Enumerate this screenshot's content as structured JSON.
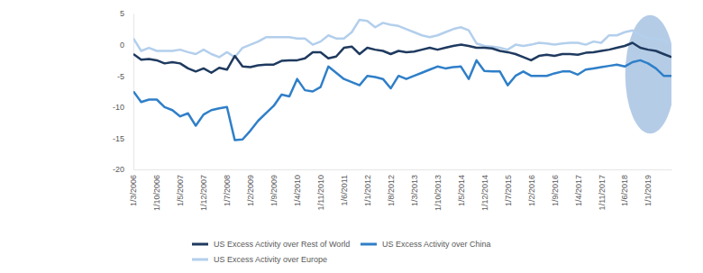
{
  "chart_data": {
    "type": "line",
    "categories": [
      "1/3/2006",
      null,
      null,
      "1/10/2006",
      null,
      null,
      "1/5/2007",
      null,
      null,
      "1/12/2007",
      null,
      null,
      "1/7/2008",
      null,
      null,
      "1/2/2009",
      null,
      null,
      "1/9/2009",
      null,
      null,
      "1/4/2010",
      null,
      null,
      "1/11/2010",
      null,
      null,
      "1/6/2011",
      null,
      null,
      "1/1/2012",
      null,
      null,
      "1/8/2012",
      null,
      null,
      "1/3/2013",
      null,
      null,
      "1/10/2013",
      null,
      null,
      "1/5/2014",
      null,
      null,
      "1/12/2014",
      null,
      null,
      "1/7/2015",
      null,
      null,
      "1/2/2016",
      null,
      null,
      "1/9/2016",
      null,
      null,
      "1/4/2017",
      null,
      null,
      "1/11/2017",
      null,
      null,
      "1/6/2018",
      null,
      null,
      "1/1/2019",
      null,
      null,
      null
    ],
    "series": [
      {
        "name": "US Excess Activity over Rest of World",
        "color": "#1f3a5f",
        "values": [
          -1.5,
          -2.4,
          -2.3,
          -2.5,
          -3,
          -2.8,
          -3,
          -3.8,
          -4.3,
          -3.8,
          -4.5,
          -3.7,
          -4,
          -1.8,
          -3.5,
          -3.6,
          -3.3,
          -3.2,
          -3.2,
          -2.6,
          -2.5,
          -2.5,
          -2.2,
          -1.2,
          -1.2,
          -2.2,
          -1.9,
          -0.5,
          -0.3,
          -1.5,
          -0.5,
          -0.8,
          -1,
          -1.5,
          -1,
          -1.2,
          -1.1,
          -0.8,
          -0.5,
          -0.8,
          -0.5,
          -0.2,
          0,
          -0.2,
          -0.5,
          -0.5,
          -0.6,
          -1,
          -1.2,
          -1.5,
          -2,
          -2.5,
          -1.8,
          -1.6,
          -1.8,
          -1.5,
          -1.5,
          -1.6,
          -1.3,
          -1.2,
          -1,
          -0.8,
          -0.5,
          -0.2,
          0.3,
          -0.5,
          -0.8,
          -1,
          -1.5,
          -2
        ]
      },
      {
        "name": "US Excess Activity over China",
        "color": "#2f7fc8",
        "values": [
          -7.5,
          -9.2,
          -8.8,
          -8.8,
          -10,
          -10.5,
          -11.5,
          -11,
          -13,
          -11.2,
          -10.5,
          -10.2,
          -10,
          -15.3,
          -15.2,
          -13.8,
          -12.2,
          -11,
          -9.8,
          -8,
          -8.3,
          -5.5,
          -7.3,
          -7.5,
          -6.8,
          -3.5,
          -4.5,
          -5.5,
          -6,
          -6.5,
          -5,
          -5.2,
          -5.5,
          -7,
          -5,
          -5.5,
          -5,
          -4.5,
          -4,
          -3.5,
          -3.8,
          -3.6,
          -3.5,
          -5.5,
          -2.5,
          -4.2,
          -4.3,
          -4.3,
          -6.5,
          -5,
          -4.3,
          -5,
          -5,
          -5,
          -4.6,
          -4.3,
          -4.3,
          -4.8,
          -4,
          -3.8,
          -3.6,
          -3.4,
          -3.2,
          -3.5,
          -2.8,
          -2.5,
          -3,
          -3.8,
          -5,
          -5
        ]
      },
      {
        "name": "US Excess Activity over Europe",
        "color": "#b3cfec",
        "values": [
          1,
          -1,
          -0.5,
          -1,
          -1,
          -1,
          -0.8,
          -1.2,
          -1.5,
          -0.8,
          -1.5,
          -2,
          -1.2,
          -2,
          -0.5,
          0,
          0.5,
          1.2,
          1.2,
          1.2,
          1.2,
          1,
          1,
          0,
          0.5,
          1.5,
          1,
          1,
          2,
          4,
          3.8,
          2.8,
          3.5,
          3.2,
          3,
          2.5,
          2,
          1.5,
          1.2,
          1.5,
          2,
          2.5,
          2.8,
          2.3,
          0.2,
          -0.2,
          -0.3,
          -0.5,
          -0.8,
          0,
          -0.2,
          0,
          0.3,
          0.2,
          0,
          0.2,
          0.3,
          0.3,
          0,
          0.5,
          0.3,
          1.5,
          1.5,
          2,
          2.3,
          1.5,
          1,
          1,
          0.8,
          0
        ]
      }
    ],
    "ylim": [
      -20,
      5
    ],
    "yticks": [
      -20,
      -15,
      -10,
      -5,
      0,
      5
    ],
    "grid": false,
    "legend": "bottom"
  }
}
